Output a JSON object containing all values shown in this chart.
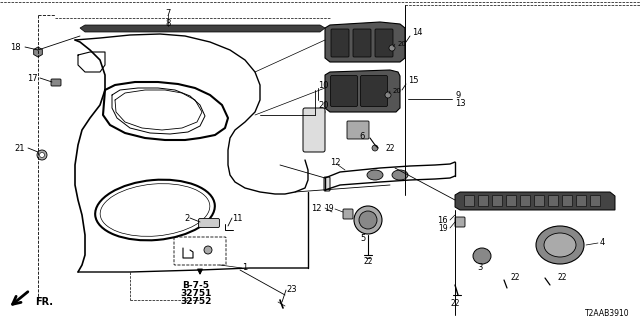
{
  "bg_color": "#ffffff",
  "diagram_code": "T2AAB3910",
  "ref_text": [
    "B-7-5",
    "32751",
    "32752"
  ]
}
